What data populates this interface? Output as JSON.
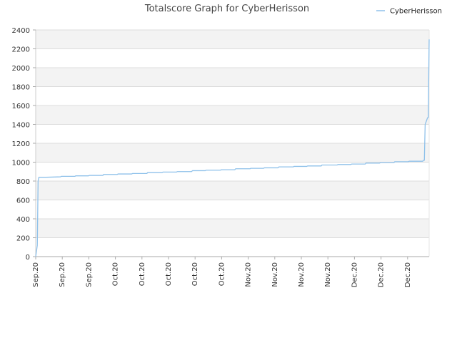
{
  "chart_data": {
    "type": "line",
    "title": "Totalscore Graph for CyberHerisson",
    "xlabel": "",
    "ylabel": "",
    "ylim": [
      0,
      2400
    ],
    "y_ticks": [
      0,
      200,
      400,
      600,
      800,
      1000,
      1200,
      1400,
      1600,
      1800,
      2000,
      2200,
      2400
    ],
    "x_tick_labels": [
      "Sep.20",
      "Sep.20",
      "Sep.20",
      "Oct.20",
      "Oct.20",
      "Oct.20",
      "Oct.20",
      "Oct.20",
      "Nov.20",
      "Nov.20",
      "Nov.20",
      "Nov.20",
      "Dec.20",
      "Dec.20",
      "Dec.20"
    ],
    "grid": true,
    "legend": "top-right",
    "series": [
      {
        "name": "CyberHerisson",
        "color": "#8fc1ea",
        "x": [
          0.0,
          0.2,
          0.3,
          0.4,
          1.3,
          3.1,
          3.2,
          4.9,
          5.0,
          6.6,
          6.7,
          8.4,
          8.5,
          10.2,
          10.3,
          12.0,
          12.1,
          13.9,
          14.0,
          15.8,
          15.9,
          17.6,
          17.7,
          19.5,
          19.6,
          21.2,
          21.3,
          23.1,
          23.2,
          24.9,
          25.0,
          26.8,
          26.9,
          28.5,
          28.6,
          30.3,
          30.4,
          32.2,
          32.3,
          33.9,
          34.0,
          35.7,
          35.8,
          37.7,
          37.8,
          39.4,
          39.5,
          41.2,
          41.3,
          43.0,
          43.1,
          44.8,
          44.9,
          46.6,
          46.7,
          48.4,
          48.5,
          48.6,
          48.7,
          49.0,
          49.1,
          49.15,
          49.2
        ],
        "y": [
          0,
          120,
          800,
          840,
          840,
          845,
          850,
          850,
          855,
          855,
          860,
          860,
          870,
          870,
          875,
          875,
          880,
          880,
          890,
          890,
          895,
          895,
          900,
          900,
          910,
          910,
          915,
          915,
          920,
          920,
          930,
          930,
          935,
          935,
          940,
          940,
          950,
          950,
          955,
          955,
          960,
          960,
          970,
          970,
          975,
          975,
          980,
          980,
          990,
          990,
          995,
          995,
          1005,
          1005,
          1010,
          1010,
          1020,
          1020,
          1400,
          1470,
          1475,
          1930,
          2300
        ]
      }
    ]
  }
}
